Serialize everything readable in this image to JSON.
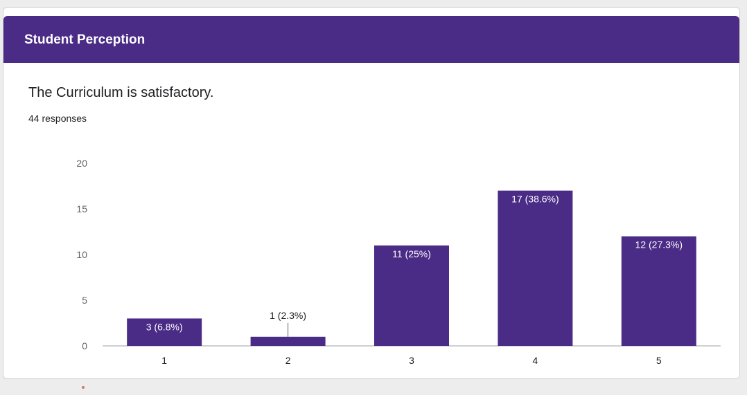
{
  "header": {
    "title": "Student Perception",
    "color": "#4a2b86"
  },
  "question": {
    "text": "The Curriculum is satisfactory.",
    "responses": "44 responses"
  },
  "chart_data": {
    "type": "bar",
    "categories": [
      "1",
      "2",
      "3",
      "4",
      "5"
    ],
    "values": [
      3,
      1,
      11,
      17,
      12
    ],
    "data_labels": [
      "3 (6.8%)",
      "1 (2.3%)",
      "11 (25%)",
      "17 (38.6%)",
      "12 (27.3%)"
    ],
    "yticks": [
      "0",
      "5",
      "10",
      "15",
      "20"
    ],
    "ylim": [
      0,
      20
    ],
    "bar_color": "#4a2b86",
    "grid": false
  }
}
